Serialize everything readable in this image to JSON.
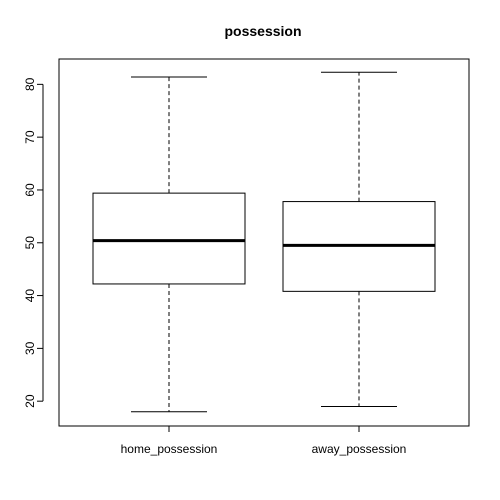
{
  "chart_data": {
    "type": "boxplot",
    "title": "possession",
    "xlabel": "",
    "ylabel": "",
    "ylim": [
      15.3,
      84.8
    ],
    "yticks": [
      20,
      30,
      40,
      50,
      60,
      70,
      80
    ],
    "categories": [
      "home_possession",
      "away_possession"
    ],
    "boxes": [
      {
        "category": "home_possession",
        "min": 18,
        "q1": 42.2,
        "median": 50.4,
        "q3": 59.4,
        "max": 81.4
      },
      {
        "category": "away_possession",
        "min": 19,
        "q1": 40.8,
        "median": 49.5,
        "q3": 57.8,
        "max": 82.3
      }
    ],
    "grid": false,
    "legend": "none"
  }
}
